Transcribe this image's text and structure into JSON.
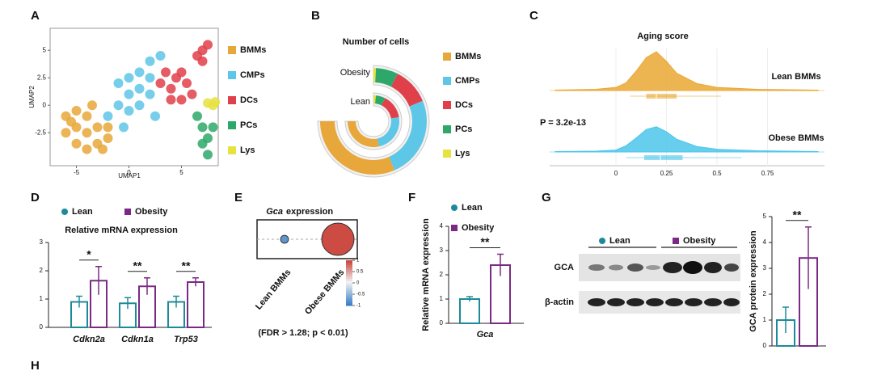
{
  "chart_data": [
    {
      "type": "scatter",
      "panel": "A",
      "xlabel": "UMAP1",
      "ylabel": "UMAP2",
      "xlim": [
        -7.5,
        8.5
      ],
      "ylim": [
        -5.5,
        7
      ],
      "xticks": [
        -5,
        0,
        5
      ],
      "yticks": [
        -2.5,
        0,
        2.5,
        5
      ],
      "series": [
        {
          "name": "BMMs",
          "color": "#e8a73a",
          "x": [
            -6,
            -5,
            -4,
            -5,
            -4,
            -3,
            -6,
            -5,
            -3,
            -2,
            -4,
            -2,
            -3.5,
            -5.5,
            -2.5
          ],
          "values": [
            -1,
            -0.5,
            -1,
            -2,
            -2.5,
            -2,
            -2.5,
            -3.5,
            -3.5,
            -3,
            -4,
            -2,
            0,
            -1.5,
            -4
          ]
        },
        {
          "name": "CMPs",
          "color": "#5ec6e6",
          "x": [
            -2,
            -1,
            0,
            1,
            2,
            -1,
            0,
            1,
            2,
            3,
            0,
            1,
            2,
            2.5,
            -0.5
          ],
          "values": [
            -1,
            0,
            -0.5,
            0,
            1,
            2,
            2.5,
            3,
            4,
            4.5,
            1,
            1.5,
            2.5,
            -1,
            -2
          ]
        },
        {
          "name": "DCs",
          "color": "#e0404a",
          "x": [
            3,
            3.5,
            4,
            4.5,
            5,
            5.5,
            6,
            4,
            5,
            6.5,
            7,
            7.5,
            7
          ],
          "values": [
            2,
            3,
            1.5,
            2.5,
            3,
            2,
            1,
            0.5,
            0.5,
            4.5,
            5,
            5.5,
            4
          ]
        },
        {
          "name": "PCs",
          "color": "#2ea86a",
          "x": [
            6.5,
            7,
            7.5,
            7,
            7.5,
            8
          ],
          "values": [
            -1,
            -2,
            -3,
            -3.5,
            -4.5,
            -2
          ]
        },
        {
          "name": "Lys",
          "color": "#e6e23e",
          "x": [
            7.5,
            8,
            8.2
          ],
          "values": [
            0.2,
            0,
            0.3
          ]
        }
      ]
    },
    {
      "type": "radial_bar",
      "panel": "B",
      "title": "Number of cells",
      "categories": [
        "Obesity",
        "Lean"
      ],
      "series": [
        {
          "name": "BMMs",
          "color": "#e8a73a",
          "values": [
            42,
            38
          ]
        },
        {
          "name": "CMPs",
          "color": "#5ec6e6",
          "values": [
            33,
            32
          ]
        },
        {
          "name": "DCs",
          "color": "#e0404a",
          "values": [
            15,
            20
          ]
        },
        {
          "name": "PCs",
          "color": "#2ea86a",
          "values": [
            9,
            8
          ]
        },
        {
          "name": "Lys",
          "color": "#e6e23e",
          "values": [
            1,
            2
          ]
        }
      ]
    },
    {
      "type": "density",
      "panel": "C",
      "title": "Aging score",
      "annotation": "P = 3.2e-13",
      "xlim": [
        -0.328,
        1.032
      ],
      "xticks": [
        0,
        0.25,
        0.5,
        0.75
      ],
      "ylim": [
        0,
        1
      ],
      "grid": true,
      "x": [
        -0.3,
        -0.1,
        0,
        0.05,
        0.1,
        0.15,
        0.2,
        0.25,
        0.3,
        0.4,
        0.5,
        0.7,
        1.0
      ],
      "series": [
        {
          "name": "Lean BMMs",
          "color": "#eaa834",
          "values": [
            0.01,
            0.03,
            0.08,
            0.2,
            0.5,
            0.85,
            1,
            0.75,
            0.45,
            0.18,
            0.08,
            0.03,
            0.01
          ],
          "box": [
            0.07,
            0.15,
            0.2,
            0.3,
            0.52
          ]
        },
        {
          "name": "Obese BMMs",
          "color": "#4cc6ea",
          "values": [
            0.01,
            0.02,
            0.05,
            0.16,
            0.36,
            0.58,
            0.65,
            0.52,
            0.33,
            0.14,
            0.07,
            0.03,
            0.01
          ],
          "box": [
            0.05,
            0.14,
            0.22,
            0.33,
            0.62
          ]
        }
      ]
    },
    {
      "type": "bar",
      "panel": "D",
      "title": "Relative mRNA  expression",
      "categories": [
        "Cdkn2a",
        "Cdkn1a",
        "Trp53"
      ],
      "ylim": [
        0,
        3
      ],
      "yticks": [
        0,
        1,
        2,
        3
      ],
      "significance": [
        "*",
        "**",
        "**"
      ],
      "series": [
        {
          "name": "Lean",
          "color": "#1d8a9a",
          "marker": "circle",
          "values": [
            0.9,
            0.85,
            0.9
          ],
          "errors": [
            0.2,
            0.2,
            0.2
          ]
        },
        {
          "name": "Obesity",
          "color": "#7a2a84",
          "marker": "square",
          "values": [
            1.65,
            1.45,
            1.6
          ],
          "errors": [
            0.5,
            0.3,
            0.15
          ]
        }
      ]
    },
    {
      "type": "dot",
      "panel": "E",
      "gene": "Gca",
      "title": "expression",
      "categories": [
        "Lean BMMs",
        "Obese BMMs"
      ],
      "values": [
        -0.8,
        0.9
      ],
      "sizes": [
        6,
        100
      ],
      "clim": [
        -1,
        1
      ],
      "cticks": [
        -1,
        -0.5,
        0,
        0.5,
        1
      ],
      "colorscale": [
        "#3a7fc8",
        "#f2f2f2",
        "#c83a30"
      ],
      "note": "(FDR > 1.28; p < 0.01)"
    },
    {
      "type": "bar",
      "panel": "F",
      "ylabel": "Relative mRNA expression",
      "categories": [
        "Gca"
      ],
      "ylim": [
        0,
        4
      ],
      "yticks": [
        0,
        1,
        2,
        3,
        4
      ],
      "significance": [
        "**"
      ],
      "series": [
        {
          "name": "Lean",
          "color": "#1d8a9a",
          "marker": "circle",
          "values": [
            1.0
          ],
          "errors": [
            0.1
          ]
        },
        {
          "name": "Obesity",
          "color": "#7a2a84",
          "marker": "square",
          "values": [
            2.4
          ],
          "errors": [
            0.45
          ]
        }
      ]
    },
    {
      "type": "bar",
      "panel": "G",
      "ylabel": "GCA protein expression",
      "blot_rows": [
        "GCA",
        "β-actin"
      ],
      "ylim": [
        0,
        5
      ],
      "yticks": [
        0,
        1,
        2,
        3,
        4,
        5
      ],
      "significance": [
        "**"
      ],
      "series": [
        {
          "name": "Lean",
          "color": "#1d8a9a",
          "marker": "circle",
          "values": [
            1.0
          ],
          "errors": [
            0.5
          ]
        },
        {
          "name": "Obesity",
          "color": "#7a2a84",
          "marker": "square",
          "values": [
            3.4
          ],
          "errors": [
            1.2
          ]
        }
      ]
    }
  ],
  "more_panels": [
    "H"
  ]
}
